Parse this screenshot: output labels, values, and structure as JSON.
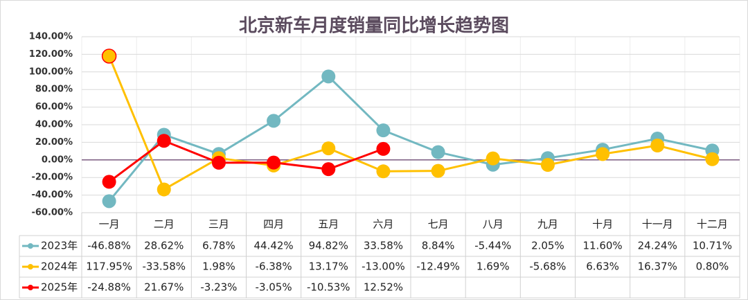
{
  "chart_data": {
    "type": "line",
    "title": "北京新车月度销量同比增长趋势图",
    "categories": [
      "一月",
      "二月",
      "三月",
      "四月",
      "五月",
      "六月",
      "七月",
      "八月",
      "九月",
      "十月",
      "十一月",
      "十二月"
    ],
    "ylim": [
      -60,
      140
    ],
    "yticks": [
      {
        "value": -60,
        "label": "-60.00%"
      },
      {
        "value": -40,
        "label": "-40.00%"
      },
      {
        "value": -20,
        "label": "-20.00%"
      },
      {
        "value": 0,
        "label": "0.00%"
      },
      {
        "value": 20,
        "label": "20.00%"
      },
      {
        "value": 40,
        "label": "40.00%"
      },
      {
        "value": 60,
        "label": "60.00%"
      },
      {
        "value": 80,
        "label": "80.00%"
      },
      {
        "value": 100,
        "label": "100.00%"
      },
      {
        "value": 120,
        "label": "120.00%"
      },
      {
        "value": 140,
        "label": "140.00%"
      }
    ],
    "grid": true,
    "series": [
      {
        "name": "2023年",
        "color": "#72b8c1",
        "values": [
          -46.88,
          28.62,
          6.78,
          44.42,
          94.82,
          33.58,
          8.84,
          -5.44,
          2.05,
          11.6,
          24.24,
          10.71
        ],
        "value_labels": [
          "-46.88%",
          "28.62%",
          "6.78%",
          "44.42%",
          "94.82%",
          "33.58%",
          "8.84%",
          "-5.44%",
          "2.05%",
          "11.60%",
          "24.24%",
          "10.71%"
        ]
      },
      {
        "name": "2024年",
        "color": "#ffc000",
        "values": [
          117.95,
          -33.58,
          1.98,
          -6.38,
          13.17,
          -13.0,
          -12.49,
          1.69,
          -5.68,
          6.63,
          16.37,
          0.8
        ],
        "value_labels": [
          "117.95%",
          "-33.58%",
          "1.98%",
          "-6.38%",
          "13.17%",
          "-13.00%",
          "-12.49%",
          "1.69%",
          "-5.68%",
          "6.63%",
          "16.37%",
          "0.80%"
        ]
      },
      {
        "name": "2025年",
        "color": "#ff0000",
        "values": [
          -24.88,
          21.67,
          -3.23,
          -3.05,
          -10.53,
          12.52,
          null,
          null,
          null,
          null,
          null,
          null
        ],
        "value_labels": [
          "-24.88%",
          "21.67%",
          "-3.23%",
          "-3.05%",
          "-10.53%",
          "12.52%",
          null,
          null,
          null,
          null,
          null,
          null
        ]
      }
    ]
  }
}
